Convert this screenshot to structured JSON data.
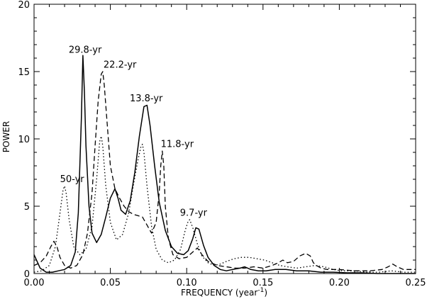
{
  "chart_data": {
    "type": "line",
    "xlabel": "FREQUENCY (year",
    "xlabel_superscript": "-1",
    "xlabel_suffix": ")",
    "ylabel": "POWER",
    "xlim": [
      0.0,
      0.25
    ],
    "ylim": [
      0,
      20
    ],
    "x_ticks": [
      0.0,
      0.05,
      0.1,
      0.15,
      0.2,
      0.25
    ],
    "x_tick_labels": [
      "0.00",
      "0.05",
      "0.10",
      "0.15",
      "0.20",
      "0.25"
    ],
    "y_ticks": [
      0,
      5,
      10,
      15,
      20
    ],
    "y_tick_labels": [
      "0",
      "5",
      "10",
      "15",
      "20"
    ],
    "grid": false,
    "legend": "none",
    "series": [
      {
        "style": "solid",
        "x": [
          0.0,
          0.004,
          0.008,
          0.012,
          0.016,
          0.02,
          0.024,
          0.027,
          0.029,
          0.031,
          0.032,
          0.033,
          0.034,
          0.036,
          0.038,
          0.041,
          0.044,
          0.047,
          0.05,
          0.053,
          0.055,
          0.057,
          0.06,
          0.063,
          0.066,
          0.069,
          0.072,
          0.074,
          0.076,
          0.079,
          0.082,
          0.086,
          0.09,
          0.094,
          0.098,
          0.101,
          0.104,
          0.106,
          0.108,
          0.111,
          0.114,
          0.118,
          0.122,
          0.126,
          0.13,
          0.135,
          0.138,
          0.142,
          0.147,
          0.152,
          0.158,
          0.165,
          0.172,
          0.18,
          0.188,
          0.196,
          0.205,
          0.215,
          0.225,
          0.235,
          0.245,
          0.25
        ],
        "y": [
          1.4,
          0.4,
          0.1,
          0.1,
          0.2,
          0.3,
          0.6,
          1.6,
          4.5,
          11.5,
          16.2,
          13.5,
          9.5,
          5.0,
          3.0,
          2.3,
          2.9,
          4.2,
          5.6,
          6.3,
          5.6,
          4.7,
          4.4,
          5.4,
          7.5,
          10.2,
          12.4,
          12.5,
          11.0,
          8.0,
          5.3,
          3.2,
          2.0,
          1.5,
          1.4,
          1.7,
          2.6,
          3.4,
          3.3,
          2.1,
          1.2,
          0.6,
          0.3,
          0.2,
          0.3,
          0.4,
          0.5,
          0.3,
          0.2,
          0.2,
          0.3,
          0.3,
          0.2,
          0.2,
          0.1,
          0.1,
          0.05,
          0.05,
          0.0,
          0.0,
          0.0,
          0.0
        ]
      },
      {
        "style": "dashed",
        "x": [
          0.0,
          0.004,
          0.008,
          0.011,
          0.013,
          0.015,
          0.017,
          0.02,
          0.024,
          0.028,
          0.032,
          0.035,
          0.038,
          0.04,
          0.042,
          0.044,
          0.045,
          0.046,
          0.048,
          0.05,
          0.053,
          0.056,
          0.059,
          0.062,
          0.065,
          0.068,
          0.071,
          0.074,
          0.077,
          0.08,
          0.082,
          0.083,
          0.084,
          0.085,
          0.086,
          0.088,
          0.091,
          0.095,
          0.1,
          0.104,
          0.107,
          0.11,
          0.114,
          0.12,
          0.126,
          0.132,
          0.138,
          0.144,
          0.15,
          0.156,
          0.16,
          0.163,
          0.166,
          0.17,
          0.174,
          0.178,
          0.181,
          0.183,
          0.185,
          0.188,
          0.192,
          0.2,
          0.21,
          0.22,
          0.228,
          0.232,
          0.235,
          0.238,
          0.242,
          0.246,
          0.25
        ],
        "y": [
          0.6,
          0.8,
          1.3,
          2.0,
          2.4,
          2.0,
          1.2,
          0.6,
          0.4,
          0.6,
          1.4,
          3.0,
          6.0,
          9.5,
          12.8,
          14.8,
          15.0,
          14.0,
          11.0,
          8.0,
          6.3,
          5.6,
          5.0,
          4.6,
          4.4,
          4.3,
          4.2,
          3.6,
          3.0,
          3.8,
          6.0,
          8.0,
          9.1,
          8.0,
          5.0,
          2.6,
          1.4,
          1.1,
          1.2,
          1.6,
          1.9,
          1.4,
          0.9,
          0.6,
          0.5,
          0.4,
          0.4,
          0.5,
          0.4,
          0.6,
          0.8,
          1.0,
          0.8,
          0.9,
          1.3,
          1.5,
          1.3,
          0.8,
          0.6,
          0.4,
          0.3,
          0.3,
          0.2,
          0.2,
          0.3,
          0.5,
          0.7,
          0.5,
          0.3,
          0.3,
          0.3
        ]
      },
      {
        "style": "dotted",
        "x": [
          0.0,
          0.005,
          0.01,
          0.014,
          0.017,
          0.019,
          0.02,
          0.021,
          0.023,
          0.026,
          0.03,
          0.034,
          0.038,
          0.041,
          0.043,
          0.044,
          0.045,
          0.047,
          0.05,
          0.054,
          0.058,
          0.062,
          0.065,
          0.068,
          0.07,
          0.071,
          0.072,
          0.074,
          0.077,
          0.08,
          0.084,
          0.088,
          0.092,
          0.096,
          0.099,
          0.101,
          0.102,
          0.104,
          0.107,
          0.11,
          0.114,
          0.118,
          0.122,
          0.126,
          0.131,
          0.136,
          0.141,
          0.146,
          0.151,
          0.156,
          0.161,
          0.166,
          0.172,
          0.178,
          0.184,
          0.19,
          0.196,
          0.202,
          0.21,
          0.218,
          0.226,
          0.234,
          0.242,
          0.25
        ],
        "y": [
          0.1,
          0.2,
          0.6,
          2.0,
          4.5,
          6.2,
          6.5,
          6.0,
          4.0,
          2.0,
          1.4,
          1.8,
          3.5,
          7.0,
          9.8,
          10.2,
          9.5,
          6.5,
          3.8,
          2.5,
          2.9,
          4.5,
          6.5,
          8.4,
          9.4,
          9.6,
          9.0,
          6.5,
          3.5,
          1.8,
          1.0,
          0.8,
          1.0,
          1.8,
          3.2,
          3.9,
          4.0,
          3.4,
          2.2,
          1.3,
          0.8,
          0.6,
          0.7,
          0.9,
          1.1,
          1.2,
          1.2,
          1.1,
          1.0,
          0.8,
          0.6,
          0.5,
          0.4,
          0.5,
          0.6,
          0.5,
          0.3,
          0.2,
          0.2,
          0.1,
          0.1,
          0.2,
          0.1,
          0.1
        ]
      }
    ],
    "annotations": [
      {
        "text": "29.8-yr",
        "x": 0.0335,
        "y": 16.4,
        "anchor": "middle"
      },
      {
        "text": "22.2-yr",
        "x": 0.0455,
        "y": 15.3,
        "anchor": "start"
      },
      {
        "text": "13.8-yr",
        "x": 0.0735,
        "y": 12.8,
        "anchor": "middle"
      },
      {
        "text": "11.8-yr",
        "x": 0.083,
        "y": 9.4,
        "anchor": "start"
      },
      {
        "text": "50-yr",
        "x": 0.017,
        "y": 6.8,
        "anchor": "start"
      },
      {
        "text": "9.7-yr",
        "x": 0.1045,
        "y": 4.3,
        "anchor": "middle"
      }
    ]
  }
}
